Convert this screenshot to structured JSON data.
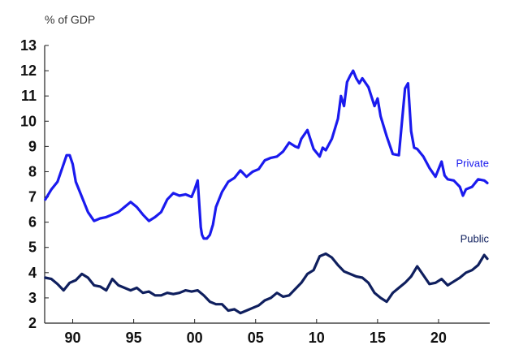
{
  "chart_data": {
    "type": "line",
    "ylabel": "% of GDP",
    "xlim": [
      1987.7,
      2024.2
    ],
    "ylim": [
      2,
      13
    ],
    "yticks": [
      2,
      3,
      4,
      5,
      6,
      7,
      8,
      9,
      10,
      11,
      12,
      13
    ],
    "xticks": [
      {
        "value": 1990,
        "label": "90"
      },
      {
        "value": 1995,
        "label": "95"
      },
      {
        "value": 2000,
        "label": "00"
      },
      {
        "value": 2005,
        "label": "05"
      },
      {
        "value": 2010,
        "label": "10"
      },
      {
        "value": 2015,
        "label": "15"
      },
      {
        "value": 2020,
        "label": "20"
      }
    ],
    "grid": false,
    "series": [
      {
        "name": "Private",
        "color": "#1a1aee",
        "x": [
          1987.75,
          1988.25,
          1988.75,
          1989.25,
          1989.5,
          1989.75,
          1990.0,
          1990.25,
          1990.75,
          1991.25,
          1991.75,
          1992.25,
          1992.75,
          1993.25,
          1993.75,
          1994.25,
          1994.75,
          1995.25,
          1995.75,
          1996.25,
          1996.75,
          1997.25,
          1997.75,
          1998.25,
          1998.75,
          1999.25,
          1999.75,
          2000.0,
          2000.25,
          2000.5,
          2000.6,
          2000.75,
          2001.0,
          2001.25,
          2001.5,
          2001.75,
          2002.25,
          2002.75,
          2003.25,
          2003.75,
          2004.25,
          2004.75,
          2005.25,
          2005.75,
          2006.25,
          2006.75,
          2007.25,
          2007.75,
          2008.25,
          2008.5,
          2008.75,
          2009.25,
          2009.75,
          2010.25,
          2010.5,
          2010.75,
          2011.25,
          2011.75,
          2012.0,
          2012.25,
          2012.5,
          2012.75,
          2013.0,
          2013.25,
          2013.5,
          2013.75,
          2014.25,
          2014.75,
          2015.0,
          2015.25,
          2015.75,
          2016.25,
          2016.75,
          2017.25,
          2017.5,
          2017.75,
          2018.0,
          2018.25,
          2018.75,
          2019.25,
          2019.75,
          2020.25,
          2020.5,
          2020.75,
          2021.25,
          2021.75,
          2022.0,
          2022.25,
          2022.75,
          2023.25,
          2023.75,
          2024.0
        ],
        "values": [
          6.9,
          7.3,
          7.6,
          8.3,
          8.65,
          8.65,
          8.3,
          7.6,
          7.0,
          6.4,
          6.05,
          6.15,
          6.2,
          6.3,
          6.4,
          6.6,
          6.8,
          6.6,
          6.3,
          6.05,
          6.2,
          6.4,
          6.9,
          7.15,
          7.05,
          7.1,
          7.0,
          7.3,
          7.65,
          5.8,
          5.5,
          5.35,
          5.35,
          5.5,
          5.9,
          6.6,
          7.2,
          7.6,
          7.75,
          8.05,
          7.8,
          8.0,
          8.1,
          8.45,
          8.55,
          8.6,
          8.8,
          9.15,
          9.0,
          8.95,
          9.3,
          9.65,
          8.9,
          8.6,
          8.95,
          8.85,
          9.3,
          10.1,
          11.0,
          10.6,
          11.55,
          11.8,
          12.0,
          11.7,
          11.5,
          11.7,
          11.35,
          10.6,
          10.9,
          10.2,
          9.4,
          8.7,
          8.65,
          11.3,
          11.5,
          9.6,
          8.95,
          8.9,
          8.6,
          8.15,
          7.8,
          8.4,
          7.85,
          7.7,
          7.65,
          7.4,
          7.05,
          7.3,
          7.4,
          7.7,
          7.65,
          7.55
        ]
      },
      {
        "name": "Public",
        "color": "#0f1f5e",
        "x": [
          1987.75,
          1988.25,
          1988.75,
          1989.25,
          1989.75,
          1990.25,
          1990.75,
          1991.25,
          1991.75,
          1992.25,
          1992.75,
          1993.25,
          1993.75,
          1994.25,
          1994.75,
          1995.25,
          1995.75,
          1996.25,
          1996.75,
          1997.25,
          1997.75,
          1998.25,
          1998.75,
          1999.25,
          1999.75,
          2000.25,
          2000.75,
          2001.25,
          2001.75,
          2002.25,
          2002.75,
          2003.25,
          2003.75,
          2004.25,
          2004.75,
          2005.25,
          2005.75,
          2006.25,
          2006.75,
          2007.25,
          2007.75,
          2008.25,
          2008.75,
          2009.25,
          2009.75,
          2010.25,
          2010.75,
          2011.25,
          2011.75,
          2012.25,
          2012.75,
          2013.25,
          2013.75,
          2014.25,
          2014.75,
          2015.25,
          2015.75,
          2016.25,
          2016.75,
          2017.25,
          2017.75,
          2018.25,
          2018.75,
          2019.25,
          2019.75,
          2020.25,
          2020.75,
          2021.25,
          2021.75,
          2022.25,
          2022.75,
          2023.25,
          2023.75,
          2024.0
        ],
        "values": [
          3.8,
          3.75,
          3.55,
          3.3,
          3.6,
          3.7,
          3.95,
          3.8,
          3.5,
          3.45,
          3.3,
          3.75,
          3.5,
          3.4,
          3.3,
          3.4,
          3.2,
          3.25,
          3.1,
          3.1,
          3.2,
          3.15,
          3.2,
          3.3,
          3.25,
          3.3,
          3.1,
          2.85,
          2.75,
          2.75,
          2.5,
          2.55,
          2.4,
          2.5,
          2.6,
          2.7,
          2.9,
          3.0,
          3.2,
          3.05,
          3.1,
          3.35,
          3.6,
          3.95,
          4.1,
          4.65,
          4.75,
          4.6,
          4.3,
          4.05,
          3.95,
          3.85,
          3.8,
          3.6,
          3.2,
          3.0,
          2.85,
          3.2,
          3.4,
          3.6,
          3.85,
          4.25,
          3.9,
          3.55,
          3.6,
          3.75,
          3.5,
          3.65,
          3.8,
          4.0,
          4.1,
          4.3,
          4.7,
          4.55
        ]
      }
    ]
  }
}
